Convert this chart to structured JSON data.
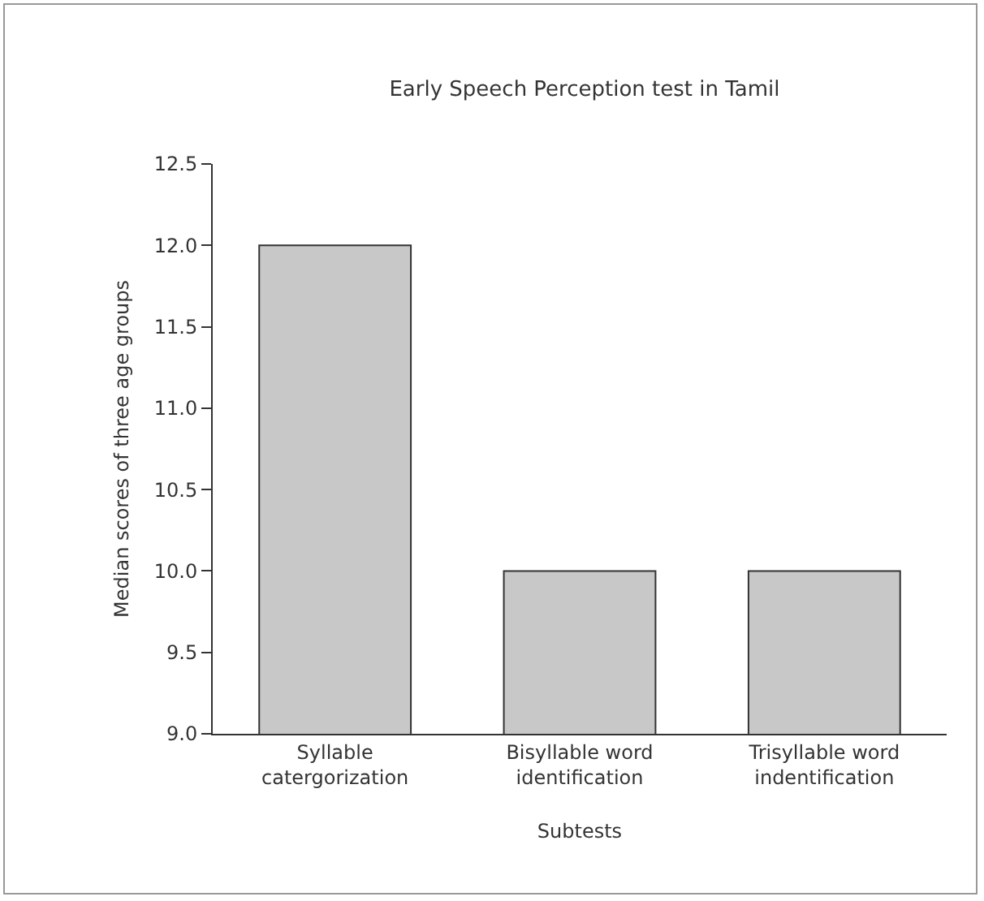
{
  "chart_data": {
    "type": "bar",
    "title": "Early Speech Perception test in Tamil",
    "xlabel": "Subtests",
    "ylabel": "Median scores of three age groups",
    "categories": [
      "Syllable\ncatergorization",
      "Bisyllable word\nidentification",
      "Trisyllable word\nindentification"
    ],
    "values": [
      12,
      10,
      10
    ],
    "color": "#c8c8c8",
    "ylim": [
      9,
      12.5
    ],
    "yticks": [
      {
        "value": 9,
        "label": "9.0"
      },
      {
        "value": 9.5,
        "label": "9.5"
      },
      {
        "value": 10,
        "label": "10.0"
      },
      {
        "value": 10.5,
        "label": "10.5"
      },
      {
        "value": 11,
        "label": "11.0"
      },
      {
        "value": 11.5,
        "label": "11.5"
      },
      {
        "value": 12,
        "label": "12.0"
      },
      {
        "value": 12.5,
        "label": "12.5"
      }
    ],
    "grid": false
  }
}
